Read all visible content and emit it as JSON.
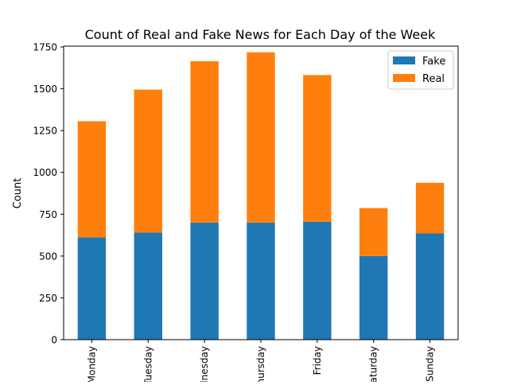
{
  "chart_data": {
    "type": "bar",
    "stacked": true,
    "title": "Count of Real and Fake News for Each Day of the Week",
    "xlabel": "",
    "ylabel": "Count",
    "categories": [
      "Monday",
      "Tuesday",
      "Wednesday",
      "Thursday",
      "Friday",
      "Saturday",
      "Sunday"
    ],
    "series": [
      {
        "name": "Fake",
        "color": "#1f77b4",
        "values": [
          612,
          640,
          700,
          700,
          705,
          500,
          635
        ]
      },
      {
        "name": "Real",
        "color": "#ff7f0e",
        "values": [
          694,
          855,
          965,
          1018,
          877,
          287,
          303
        ]
      }
    ],
    "ylim": [
      0,
      1755
    ],
    "yticks": [
      0,
      250,
      500,
      750,
      1000,
      1250,
      1500,
      1750
    ],
    "legend": "top-right",
    "grid": false
  }
}
